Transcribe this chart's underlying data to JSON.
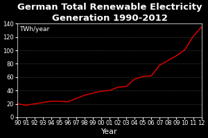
{
  "title": "German Total Renewable Electricity\nGeneration 1990-2012",
  "xlabel": "Year",
  "ylabel_annotation": "TWh/year",
  "background_color": "#000000",
  "plot_background_color": "#000000",
  "line_color": "#cc0000",
  "text_color": "#ffffff",
  "grid_color": "#555555",
  "years": [
    1990,
    1991,
    1992,
    1993,
    1994,
    1995,
    1996,
    1997,
    1998,
    1999,
    2000,
    2001,
    2002,
    2003,
    2004,
    2005,
    2006,
    2007,
    2008,
    2009,
    2010,
    2011,
    2012
  ],
  "values": [
    20,
    18,
    20,
    22,
    24,
    24,
    23,
    28,
    33,
    36,
    39,
    40,
    45,
    46,
    57,
    61,
    62,
    78,
    85,
    92,
    101,
    121,
    135
  ],
  "xlim": [
    1990,
    2012
  ],
  "ylim": [
    0,
    140
  ],
  "yticks": [
    0,
    20,
    40,
    60,
    80,
    100,
    120,
    140
  ],
  "xtick_labels": [
    "90",
    "91",
    "92",
    "93",
    "94",
    "95",
    "96",
    "97",
    "98",
    "99",
    "00",
    "01",
    "02",
    "03",
    "04",
    "05",
    "06",
    "07",
    "08",
    "09",
    "10",
    "11",
    "12"
  ],
  "title_fontsize": 9.5,
  "xlabel_fontsize": 8,
  "tick_fontsize": 6,
  "annotation_fontsize": 6.5
}
